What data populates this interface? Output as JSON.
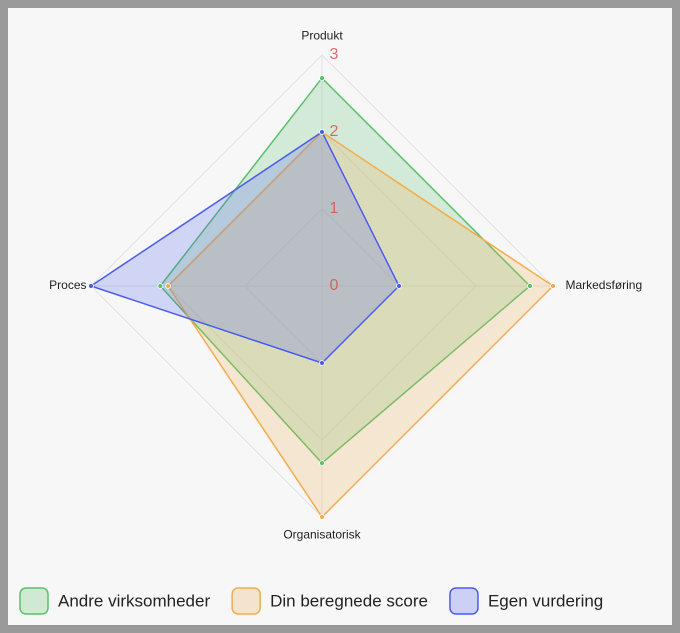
{
  "chart_data": {
    "type": "radar",
    "categories": [
      "Produkt",
      "Markedsføring",
      "Organisatorisk",
      "Proces"
    ],
    "series": [
      {
        "name": "Andre virksomheder",
        "color": "#5cbf6c",
        "values": [
          2.7,
          2.7,
          2.3,
          2.1
        ]
      },
      {
        "name": "Din beregnede score",
        "color": "#f0ad4e",
        "values": [
          2,
          3,
          3,
          2
        ]
      },
      {
        "name": "Egen vurdering",
        "color": "#4a5cf0",
        "values": [
          2,
          1,
          1,
          3
        ]
      }
    ],
    "rlim": [
      0,
      3
    ],
    "rticks": [
      0,
      1,
      2,
      3
    ],
    "grid": true,
    "legend": "bottom"
  }
}
